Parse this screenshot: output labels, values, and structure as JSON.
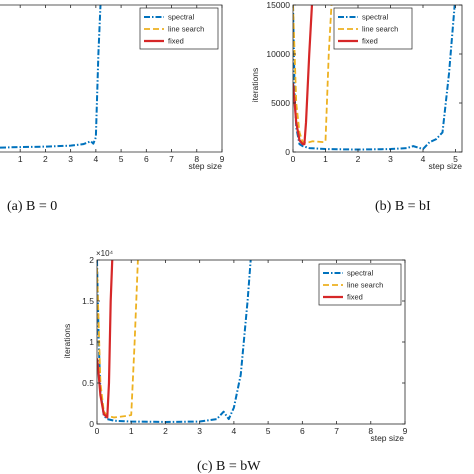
{
  "colors": {
    "spectral": "#0072bd",
    "line_search": "#edb120",
    "fixed": "#d62728"
  },
  "chart_data": [
    {
      "id": "a",
      "type": "line",
      "caption": "(a) B = 0",
      "xlabel": "step size",
      "ylabel": "",
      "xlim": [
        0.2,
        9
      ],
      "ylim": [
        0,
        15000
      ],
      "xticks": [
        1,
        2,
        3,
        4,
        5,
        6,
        7,
        8,
        9
      ],
      "yticks": [],
      "exponent_label": "",
      "legend": {
        "placement": "top-right",
        "entries": [
          "spectral",
          "line search",
          "fixed"
        ]
      },
      "series": [
        {
          "key": "spectral",
          "style": "dashdot",
          "x": [
            0.2,
            1,
            2,
            3,
            3.5,
            3.8,
            3.9,
            4.0,
            4.1,
            4.2
          ],
          "y": [
            450,
            500,
            550,
            650,
            800,
            1100,
            850,
            1500,
            10000,
            16000
          ]
        }
      ]
    },
    {
      "id": "b",
      "type": "line",
      "caption": "(b) B = bI",
      "xlabel": "step size",
      "ylabel": "iterations",
      "xlim": [
        0,
        5.2
      ],
      "ylim": [
        0,
        15000
      ],
      "xticks": [
        0,
        1,
        2,
        3,
        4,
        5
      ],
      "yticks": [
        0,
        5000,
        10000,
        15000
      ],
      "exponent_label": "",
      "legend": {
        "placement": "top-center",
        "entries": [
          "spectral",
          "line search",
          "fixed"
        ]
      },
      "series": [
        {
          "key": "spectral",
          "style": "dashdot",
          "x": [
            0,
            0.05,
            0.1,
            0.2,
            0.3,
            0.5,
            1,
            2,
            3,
            3.5,
            3.7,
            4.0,
            4.2,
            4.4,
            4.6,
            4.8,
            5.0
          ],
          "y": [
            15000,
            6000,
            2500,
            800,
            600,
            400,
            300,
            250,
            300,
            400,
            600,
            300,
            1000,
            1300,
            2000,
            8000,
            16000
          ]
        },
        {
          "key": "line_search",
          "style": "dashed",
          "x": [
            0,
            0.05,
            0.1,
            0.2,
            0.3,
            0.4,
            0.5,
            0.6,
            0.8,
            0.95,
            1.0,
            1.1,
            1.2
          ],
          "y": [
            15000,
            10000,
            5000,
            2000,
            1000,
            900,
            1000,
            1100,
            1050,
            1000,
            1100,
            10000,
            16000
          ]
        },
        {
          "key": "fixed",
          "style": "solid",
          "x": [
            0,
            0.05,
            0.1,
            0.2,
            0.3,
            0.35,
            0.4,
            0.5,
            0.6
          ],
          "y": [
            7000,
            5000,
            3000,
            1200,
            800,
            800,
            3000,
            10000,
            16000
          ]
        }
      ]
    },
    {
      "id": "c",
      "type": "line",
      "caption": "(c) B = bW",
      "xlabel": "step size",
      "ylabel": "iterations",
      "xlim": [
        0,
        9
      ],
      "ylim": [
        0,
        20000
      ],
      "xticks": [
        0,
        1,
        2,
        3,
        4,
        5,
        6,
        7,
        8,
        9
      ],
      "yticks": [
        0,
        5000,
        10000,
        15000,
        20000
      ],
      "ytick_labels": [
        "0",
        "0.5",
        "1",
        "1.5",
        "2"
      ],
      "exponent_label": "×10⁴",
      "legend": {
        "placement": "top-right",
        "entries": [
          "spectral",
          "line search",
          "fixed"
        ]
      },
      "series": [
        {
          "key": "spectral",
          "style": "dashdot",
          "x": [
            0,
            0.05,
            0.1,
            0.2,
            0.3,
            0.5,
            1,
            2,
            3,
            3.5,
            3.7,
            3.85,
            4.0,
            4.2,
            4.4,
            4.5
          ],
          "y": [
            20000,
            10000,
            4000,
            1000,
            600,
            400,
            300,
            250,
            300,
            600,
            1500,
            600,
            2000,
            6000,
            15000,
            20500
          ]
        },
        {
          "key": "line_search",
          "style": "dashed",
          "x": [
            0,
            0.05,
            0.1,
            0.2,
            0.3,
            0.4,
            0.5,
            0.7,
            0.9,
            1.0,
            1.1,
            1.2
          ],
          "y": [
            19000,
            12000,
            5000,
            1500,
            1000,
            900,
            800,
            900,
            1000,
            1100,
            10000,
            20500
          ]
        },
        {
          "key": "fixed",
          "style": "solid",
          "x": [
            0,
            0.05,
            0.1,
            0.2,
            0.3,
            0.35,
            0.4,
            0.45
          ],
          "y": [
            8000,
            6000,
            3500,
            1200,
            800,
            5000,
            15000,
            20500
          ]
        }
      ]
    }
  ]
}
